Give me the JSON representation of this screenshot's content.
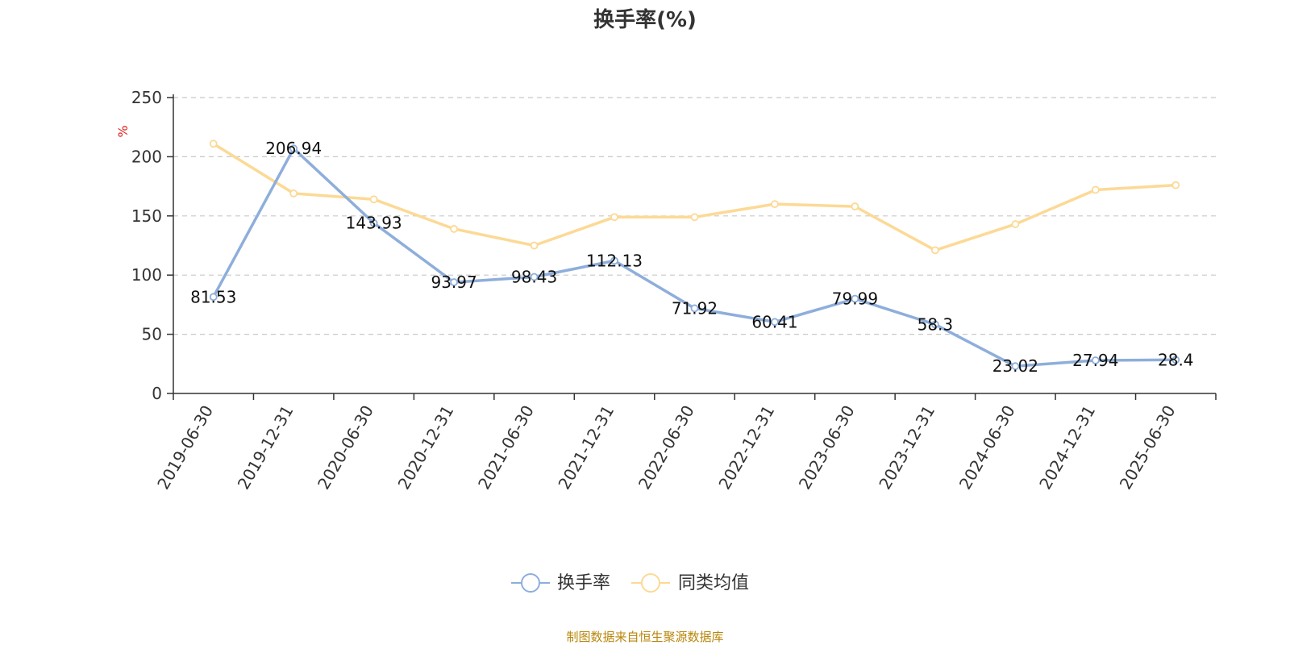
{
  "chart_data": {
    "type": "line",
    "title": "换手率(%)",
    "ylabel": "%",
    "xlabel": "",
    "ylim": [
      0,
      250
    ],
    "yticks": [
      0,
      50,
      100,
      150,
      200,
      250
    ],
    "grid": true,
    "legend_position": "bottom",
    "categories": [
      "2019-06-30",
      "2019-12-31",
      "2020-06-30",
      "2020-12-31",
      "2021-06-30",
      "2021-12-31",
      "2022-06-30",
      "2022-12-31",
      "2023-06-30",
      "2023-12-31",
      "2024-06-30",
      "2024-12-31",
      "2025-06-30"
    ],
    "series": [
      {
        "name": "换手率",
        "color": "#8eaedb",
        "values": [
          81.53,
          206.94,
          143.93,
          93.97,
          98.43,
          112.13,
          71.92,
          60.41,
          79.99,
          58.3,
          23.02,
          27.94,
          28.4
        ],
        "labels": [
          "81.53",
          "206.94",
          "143.93",
          "93.97",
          "98.43",
          "112.13",
          "71.92",
          "60.41",
          "79.99",
          "58.3",
          "23.02",
          "27.94",
          "28.4"
        ]
      },
      {
        "name": "同类均值",
        "color": "#fcd995",
        "values": [
          211,
          169,
          164,
          139,
          125,
          149,
          149,
          160,
          158,
          121,
          143,
          172,
          176
        ]
      }
    ]
  },
  "footer": {
    "source": "制图数据来自恒生聚源数据库"
  }
}
